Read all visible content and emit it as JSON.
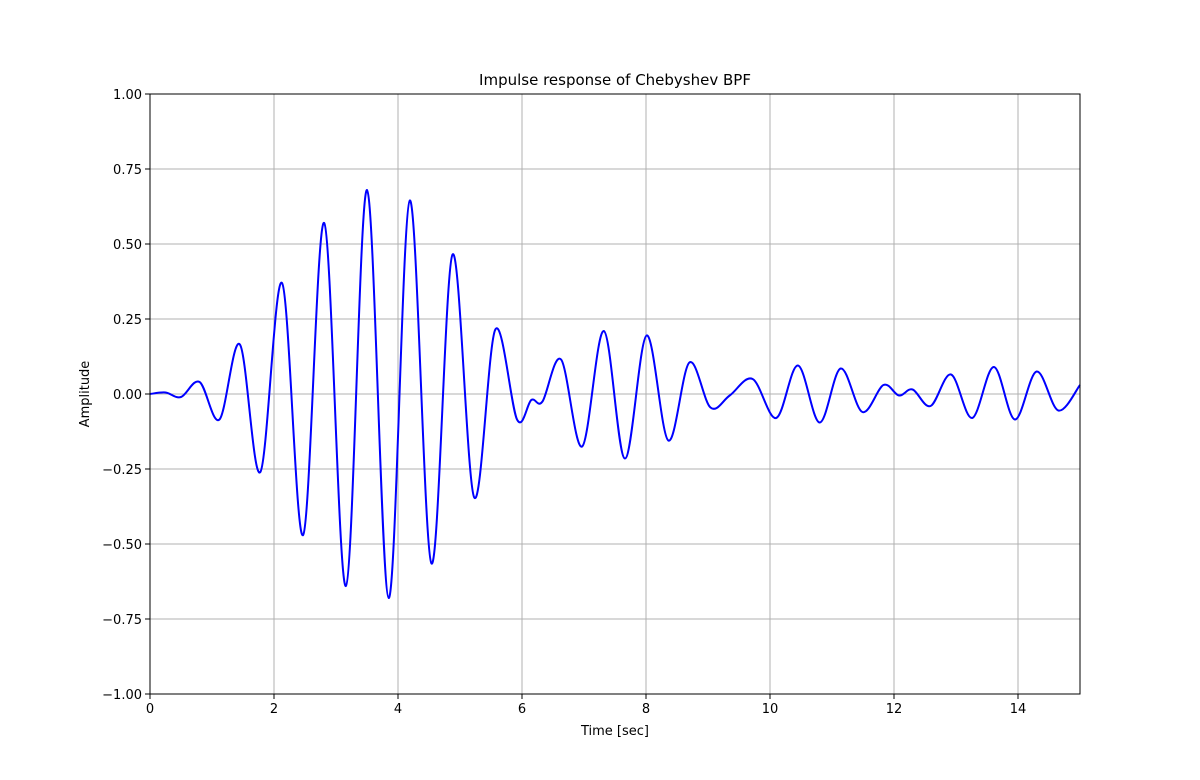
{
  "chart_data": {
    "type": "line",
    "title": "Impulse response of Chebyshev BPF",
    "xlabel": "Time  [sec]",
    "ylabel": "Amplitude",
    "xlim": [
      0,
      15
    ],
    "ylim": [
      -1.0,
      1.0
    ],
    "grid": true,
    "x_ticks": [
      0,
      2,
      4,
      6,
      8,
      10,
      12,
      14
    ],
    "x_tick_labels": [
      "0",
      "2",
      "4",
      "6",
      "8",
      "10",
      "12",
      "14"
    ],
    "y_ticks": [
      -1.0,
      -0.75,
      -0.5,
      -0.25,
      0.0,
      0.25,
      0.5,
      0.75,
      1.0
    ],
    "y_tick_labels": [
      "−1.00",
      "−0.75",
      "−0.50",
      "−0.25",
      "0.00",
      "0.25",
      "0.50",
      "0.75",
      "1.00"
    ],
    "series": [
      {
        "color": "#0000ff",
        "points": [
          [
            0.0,
            0.0
          ],
          [
            0.25,
            0.005
          ],
          [
            0.5,
            -0.01
          ],
          [
            0.8,
            0.04
          ],
          [
            1.12,
            -0.085
          ],
          [
            1.45,
            0.165
          ],
          [
            1.78,
            -0.26
          ],
          [
            2.13,
            0.37
          ],
          [
            2.47,
            -0.47
          ],
          [
            2.81,
            0.57
          ],
          [
            3.16,
            -0.64
          ],
          [
            3.5,
            0.68
          ],
          [
            3.85,
            -0.68
          ],
          [
            4.19,
            0.645
          ],
          [
            4.54,
            -0.565
          ],
          [
            4.88,
            0.465
          ],
          [
            5.23,
            -0.345
          ],
          [
            5.57,
            0.215
          ],
          [
            5.92,
            -0.085
          ],
          [
            6.15,
            -0.02
          ],
          [
            6.33,
            -0.025
          ],
          [
            6.63,
            0.115
          ],
          [
            6.97,
            -0.175
          ],
          [
            7.32,
            0.21
          ],
          [
            7.66,
            -0.215
          ],
          [
            8.01,
            0.195
          ],
          [
            8.36,
            -0.155
          ],
          [
            8.7,
            0.105
          ],
          [
            9.04,
            -0.045
          ],
          [
            9.35,
            -0.005
          ],
          [
            9.72,
            0.05
          ],
          [
            10.1,
            -0.08
          ],
          [
            10.45,
            0.095
          ],
          [
            10.8,
            -0.095
          ],
          [
            11.14,
            0.085
          ],
          [
            11.49,
            -0.06
          ],
          [
            11.83,
            0.03
          ],
          [
            12.08,
            -0.005
          ],
          [
            12.3,
            0.015
          ],
          [
            12.59,
            -0.04
          ],
          [
            12.92,
            0.065
          ],
          [
            13.26,
            -0.08
          ],
          [
            13.61,
            0.09
          ],
          [
            13.95,
            -0.085
          ],
          [
            14.3,
            0.075
          ],
          [
            14.65,
            -0.055
          ],
          [
            15.0,
            0.03
          ]
        ]
      }
    ]
  }
}
